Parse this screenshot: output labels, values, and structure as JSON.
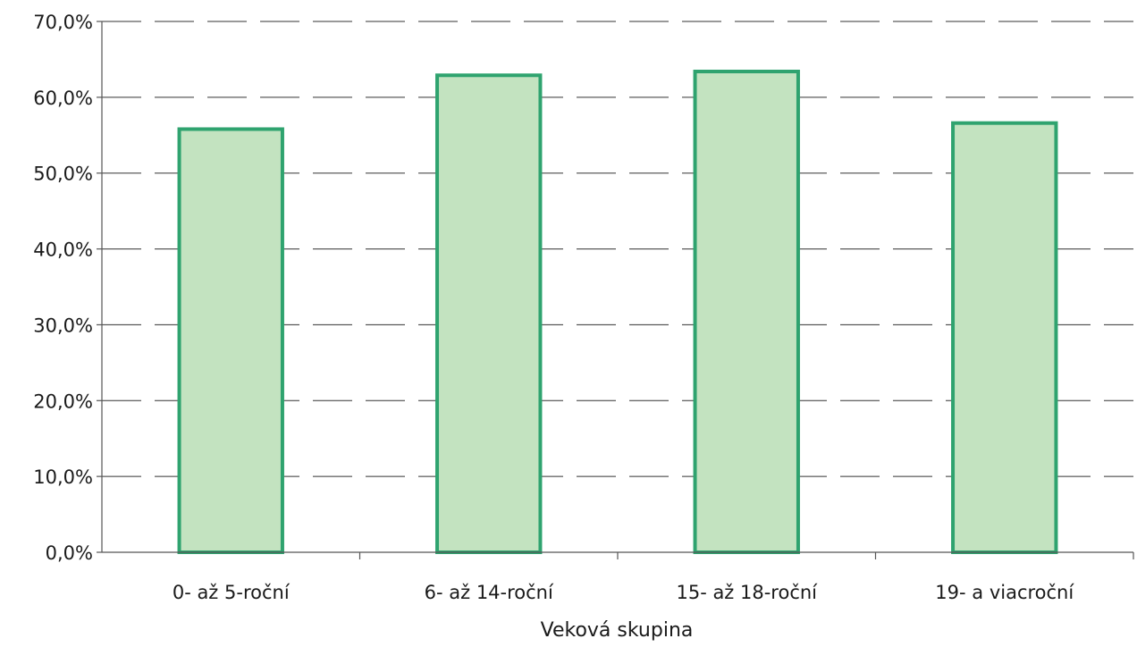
{
  "chart_data": {
    "type": "bar",
    "title": "",
    "xlabel": "Veková skupina",
    "ylabel": "",
    "categories": [
      "0- až 5-roční",
      "6- až 14-roční",
      "15- až 18-roční",
      "19- a viacroční"
    ],
    "values": [
      55.8,
      62.9,
      63.4,
      56.6
    ],
    "ylim": [
      0,
      70
    ],
    "yticks": [
      0,
      10,
      20,
      30,
      40,
      50,
      60,
      70
    ],
    "ytick_labels": [
      "0,0%",
      "10,0%",
      "20,0%",
      "30,0%",
      "40,0%",
      "50,0%",
      "60,0%",
      "70,0%"
    ],
    "grid": true,
    "legend": "none",
    "colors": {
      "bar_fill": "#c3e3c0",
      "bar_stroke": "#2fa36f"
    }
  }
}
